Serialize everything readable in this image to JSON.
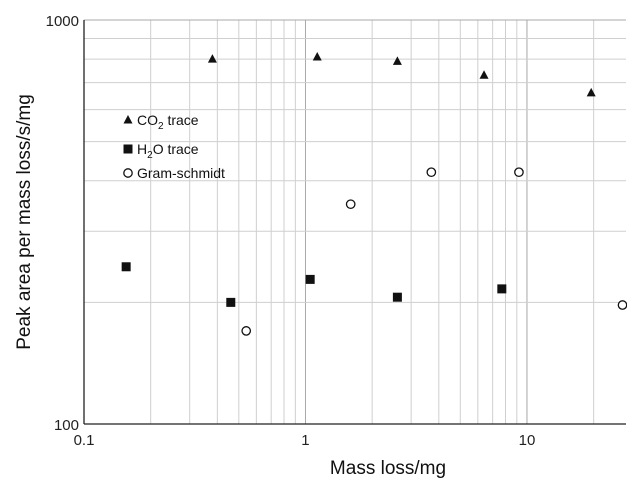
{
  "chart_data": {
    "type": "scatter",
    "xlabel": "Mass loss/mg",
    "ylabel": "Peak area per mass loss/s/mg",
    "x_scale": "log",
    "y_scale": "log",
    "xlim": [
      0.1,
      28
    ],
    "ylim": [
      100,
      1000
    ],
    "x_tick_labels": [
      "0.1",
      "1",
      "10"
    ],
    "y_tick_labels": [
      "100",
      "1000"
    ],
    "grid": true,
    "legend_position": "upper-left",
    "series": [
      {
        "name": "CO2 trace",
        "legend_main": "CO",
        "legend_sub": "2",
        "legend_rest": " trace",
        "marker": "triangle",
        "color": "#111111",
        "points": [
          [
            0.38,
            800
          ],
          [
            1.13,
            810
          ],
          [
            2.6,
            790
          ],
          [
            6.4,
            730
          ],
          [
            19.5,
            660
          ]
        ]
      },
      {
        "name": "H2O trace",
        "legend_main": "H",
        "legend_sub": "2",
        "legend_rest": "O trace",
        "marker": "square",
        "color": "#111111",
        "points": [
          [
            0.155,
            245
          ],
          [
            0.46,
            200
          ],
          [
            1.05,
            228
          ],
          [
            2.6,
            206
          ],
          [
            7.7,
            216
          ]
        ]
      },
      {
        "name": "Gram-schmidt",
        "legend_main": "Gram-schmidt",
        "legend_sub": "",
        "legend_rest": "",
        "marker": "circle-open",
        "color": "#111111",
        "points": [
          [
            0.54,
            170
          ],
          [
            1.6,
            350
          ],
          [
            3.7,
            420
          ],
          [
            9.2,
            420
          ],
          [
            27,
            197
          ]
        ]
      }
    ]
  }
}
